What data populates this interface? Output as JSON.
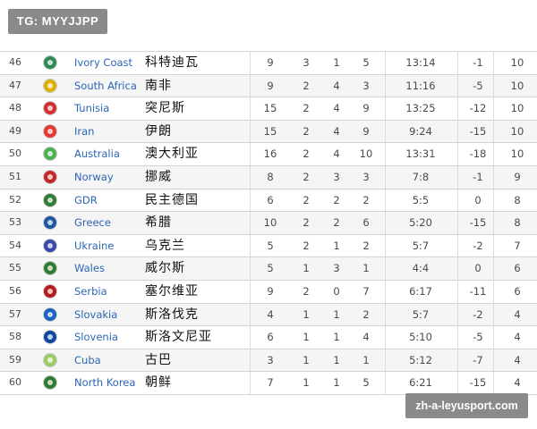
{
  "watermark": "TG: MYYJJPP",
  "site_badge": "zh-a-leyusport.com",
  "rows": [
    {
      "rank": "46",
      "en": "Ivory Coast",
      "zh": "科特迪瓦",
      "c1": "9",
      "c2": "3",
      "c3": "1",
      "c4": "5",
      "c5": "13:14",
      "c6": "-1",
      "c7": "10",
      "flag_color": "#2e8b57",
      "flag_icon": "ivory-coast-flag-icon"
    },
    {
      "rank": "47",
      "en": "South Africa",
      "zh": "南非",
      "c1": "9",
      "c2": "2",
      "c3": "4",
      "c4": "3",
      "c5": "11:16",
      "c6": "-5",
      "c7": "10",
      "flag_color": "#e0b000",
      "flag_icon": "south-africa-flag-icon"
    },
    {
      "rank": "48",
      "en": "Tunisia",
      "zh": "突尼斯",
      "c1": "15",
      "c2": "2",
      "c3": "4",
      "c4": "9",
      "c5": "13:25",
      "c6": "-12",
      "c7": "10",
      "flag_color": "#d32f2f",
      "flag_icon": "tunisia-flag-icon"
    },
    {
      "rank": "49",
      "en": "Iran",
      "zh": "伊朗",
      "c1": "15",
      "c2": "2",
      "c3": "4",
      "c4": "9",
      "c5": "9:24",
      "c6": "-15",
      "c7": "10",
      "flag_color": "#e53935",
      "flag_icon": "iran-flag-icon"
    },
    {
      "rank": "50",
      "en": "Australia",
      "zh": "澳大利亚",
      "c1": "16",
      "c2": "2",
      "c3": "4",
      "c4": "10",
      "c5": "13:31",
      "c6": "-18",
      "c7": "10",
      "flag_color": "#4caf50",
      "flag_icon": "australia-flag-icon"
    },
    {
      "rank": "51",
      "en": "Norway",
      "zh": "挪威",
      "c1": "8",
      "c2": "2",
      "c3": "3",
      "c4": "3",
      "c5": "7:8",
      "c6": "-1",
      "c7": "9",
      "flag_color": "#c62828",
      "flag_icon": "norway-flag-icon"
    },
    {
      "rank": "52",
      "en": "GDR",
      "zh": "民主德国",
      "c1": "6",
      "c2": "2",
      "c3": "2",
      "c4": "2",
      "c5": "5:5",
      "c6": "0",
      "c7": "8",
      "flag_color": "#2e7d32",
      "flag_icon": "gdr-flag-icon"
    },
    {
      "rank": "53",
      "en": "Greece",
      "zh": "希腊",
      "c1": "10",
      "c2": "2",
      "c3": "2",
      "c4": "6",
      "c5": "5:20",
      "c6": "-15",
      "c7": "8",
      "flag_color": "#1e56a0",
      "flag_icon": "greece-flag-icon"
    },
    {
      "rank": "54",
      "en": "Ukraine",
      "zh": "乌克兰",
      "c1": "5",
      "c2": "2",
      "c3": "1",
      "c4": "2",
      "c5": "5:7",
      "c6": "-2",
      "c7": "7",
      "flag_color": "#3949ab",
      "flag_icon": "ukraine-flag-icon"
    },
    {
      "rank": "55",
      "en": "Wales",
      "zh": "威尔斯",
      "c1": "5",
      "c2": "1",
      "c3": "3",
      "c4": "1",
      "c5": "4:4",
      "c6": "0",
      "c7": "6",
      "flag_color": "#2e7d32",
      "flag_icon": "wales-flag-icon"
    },
    {
      "rank": "56",
      "en": "Serbia",
      "zh": "塞尔维亚",
      "c1": "9",
      "c2": "2",
      "c3": "0",
      "c4": "7",
      "c5": "6:17",
      "c6": "-11",
      "c7": "6",
      "flag_color": "#b71c1c",
      "flag_icon": "serbia-flag-icon"
    },
    {
      "rank": "57",
      "en": "Slovakia",
      "zh": "斯洛伐克",
      "c1": "4",
      "c2": "1",
      "c3": "1",
      "c4": "2",
      "c5": "5:7",
      "c6": "-2",
      "c7": "4",
      "flag_color": "#1565c0",
      "flag_icon": "slovakia-flag-icon"
    },
    {
      "rank": "58",
      "en": "Slovenia",
      "zh": "斯洛文尼亚",
      "c1": "6",
      "c2": "1",
      "c3": "1",
      "c4": "4",
      "c5": "5:10",
      "c6": "-5",
      "c7": "4",
      "flag_color": "#0d47a1",
      "flag_icon": "slovenia-flag-icon"
    },
    {
      "rank": "59",
      "en": "Cuba",
      "zh": "古巴",
      "c1": "3",
      "c2": "1",
      "c3": "1",
      "c4": "1",
      "c5": "5:12",
      "c6": "-7",
      "c7": "4",
      "flag_color": "#9ccc65",
      "flag_icon": "cuba-flag-icon"
    },
    {
      "rank": "60",
      "en": "North Korea",
      "zh": "朝鲜",
      "c1": "7",
      "c2": "1",
      "c3": "1",
      "c4": "5",
      "c5": "6:21",
      "c6": "-15",
      "c7": "4",
      "flag_color": "#2e7d32",
      "flag_icon": "north-korea-flag-icon"
    }
  ]
}
